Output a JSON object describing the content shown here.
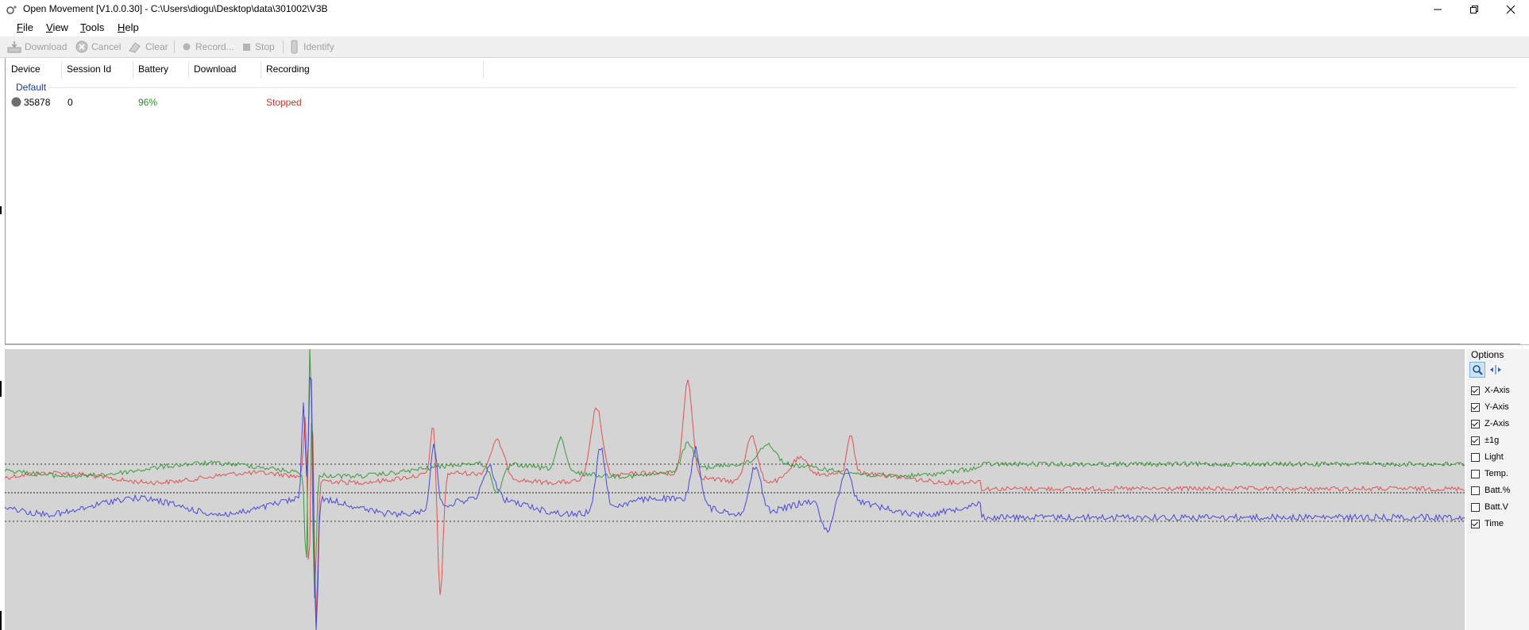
{
  "window": {
    "title": "Open Movement  [V1.0.0.30] - C:\\Users\\diogu\\Desktop\\data\\301002\\V3B"
  },
  "menu": [
    {
      "accel": "F",
      "rest": "ile"
    },
    {
      "accel": "V",
      "rest": "iew"
    },
    {
      "accel": "T",
      "rest": "ools"
    },
    {
      "accel": "H",
      "rest": "elp"
    }
  ],
  "toolbar": {
    "download": "Download",
    "cancel": "Cancel",
    "clear": "Clear",
    "record": "Record...",
    "stop": "Stop",
    "identify": "Identify"
  },
  "device_list": {
    "columns": [
      "Device",
      "Session Id",
      "Battery",
      "Download",
      "Recording"
    ],
    "group": "Default",
    "rows": [
      {
        "device": "35878",
        "session_id": "0",
        "battery": "96%",
        "download": "",
        "recording": "Stopped"
      }
    ],
    "colors": {
      "battery": "#2e8b2e",
      "recording": "#c0392b",
      "status_dot": "#6e6e6e"
    }
  },
  "graph": {
    "series_colors": {
      "x": "#e05252",
      "y": "#3a9a3a",
      "z": "#4848d8"
    }
  },
  "options": {
    "title": "Options",
    "items": [
      {
        "label": "X-Axis",
        "checked": true
      },
      {
        "label": "Y-Axis",
        "checked": true
      },
      {
        "label": "Z-Axis",
        "checked": true
      },
      {
        "label": "±1g",
        "checked": true
      },
      {
        "label": "Light",
        "checked": false
      },
      {
        "label": "Temp.",
        "checked": false
      },
      {
        "label": "Batt.%",
        "checked": false
      },
      {
        "label": "Batt.V",
        "checked": false
      },
      {
        "label": "Time",
        "checked": true
      }
    ]
  }
}
